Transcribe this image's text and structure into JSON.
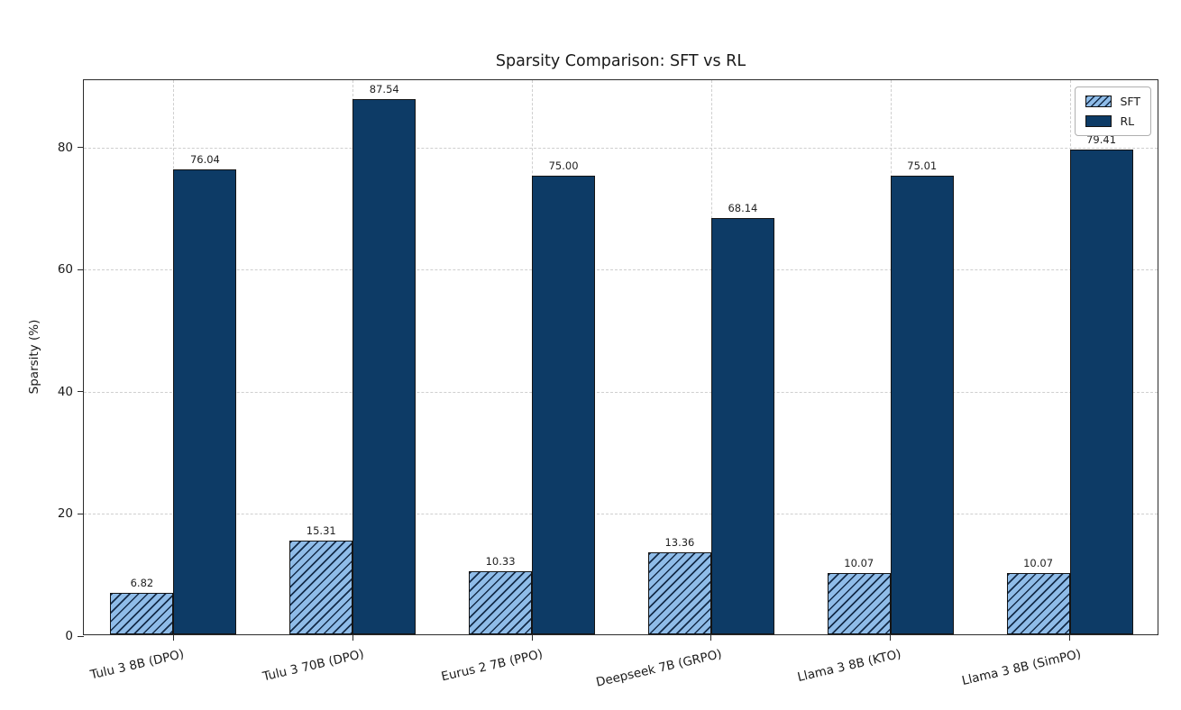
{
  "chart_data": {
    "type": "bar",
    "title": "Sparsity Comparison: SFT vs RL",
    "xlabel": "",
    "ylabel": "Sparsity (%)",
    "categories": [
      "Tulu 3 8B (DPO)",
      "Tulu 3 70B (DPO)",
      "Eurus 2 7B (PPO)",
      "Deepseek 7B (GRPO)",
      "Llama 3 8B (KTO)",
      "Llama 3 8B (SimPO)"
    ],
    "series": [
      {
        "name": "SFT",
        "values": [
          6.82,
          15.31,
          10.33,
          13.36,
          10.07,
          10.07
        ],
        "labels": [
          "6.82",
          "15.31",
          "10.33",
          "13.36",
          "10.07",
          "10.07"
        ],
        "color": "#8fbce8",
        "hatch": "//"
      },
      {
        "name": "RL",
        "values": [
          76.04,
          87.54,
          75.0,
          68.14,
          75.01,
          79.41
        ],
        "labels": [
          "76.04",
          "87.54",
          "75.00",
          "68.14",
          "75.01",
          "79.41"
        ],
        "color": "#0d3b66",
        "hatch": ""
      }
    ],
    "ylim": [
      0,
      91
    ],
    "yticks": [
      0,
      20,
      40,
      60,
      80
    ],
    "grid": true,
    "grid_style": "dashed",
    "legend_position": "upper right",
    "legend_entries": [
      "SFT",
      "RL"
    ],
    "bar_edge_color": "#141414",
    "background_color": "#ffffff"
  }
}
